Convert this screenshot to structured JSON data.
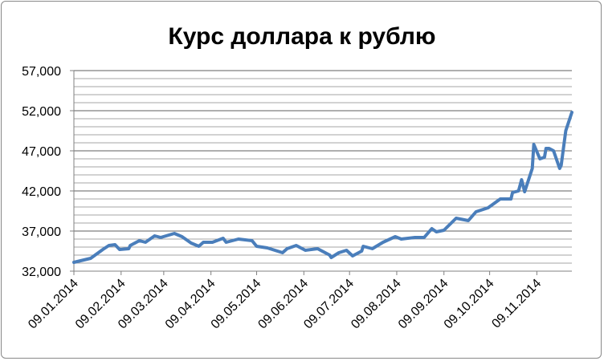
{
  "chart_data": {
    "type": "line",
    "title": "Курс доллара к рублю",
    "xlabel": "",
    "ylabel": "",
    "ylim": [
      32000,
      57000
    ],
    "yticks": [
      "32,000",
      "37,000",
      "42,000",
      "47,000",
      "52,000",
      "57,000"
    ],
    "ytick_values": [
      32000,
      37000,
      42000,
      47000,
      52000,
      57000
    ],
    "minor_grid_step": 1000,
    "xlim": [
      "09.01.2014",
      "02.12.2014"
    ],
    "xticks": [
      "09.01.2014",
      "09.02.2014",
      "09.03.2014",
      "09.04.2014",
      "09.05.2014",
      "09.06.2014",
      "09.07.2014",
      "09.08.2014",
      "09.09.2014",
      "09.10.2014",
      "09.11.2014"
    ],
    "grid": true,
    "legend": "none",
    "line_color": "#4a7ebb",
    "series": [
      {
        "x": [
          "09.01.2014",
          "20.01.2014",
          "28.01.2014",
          "01.02.2014",
          "05.02.2014",
          "08.02.2014",
          "14.02.2014",
          "15.02.2014",
          "21.02.2014",
          "25.02.2014",
          "03.03.2014",
          "07.03.2014",
          "16.03.2014",
          "21.03.2014",
          "27.03.2014",
          "01.04.2014",
          "04.04.2014",
          "10.04.2014",
          "17.04.2014",
          "19.04.2014",
          "27.04.2014",
          "06.05.2014",
          "09.05.2014",
          "16.05.2014",
          "26.05.2014",
          "29.05.2014",
          "04.06.2014",
          "10.06.2014",
          "18.06.2014",
          "21.06.2014",
          "26.06.2014",
          "27.06.2014",
          "02.07.2014",
          "07.07.2014",
          "11.07.2014",
          "17.07.2014",
          "18.07.2014",
          "24.07.2014",
          "31.07.2014",
          "08.08.2014",
          "12.08.2014",
          "21.08.2014",
          "27.08.2014",
          "01.09.2014",
          "04.09.2014",
          "09.09.2014",
          "17.09.2014",
          "25.09.2014",
          "30.09.2014",
          "08.10.2014",
          "16.10.2014",
          "23.10.2014",
          "24.10.2014",
          "28.10.2014",
          "30.10.2014",
          "01.11.2014",
          "06.11.2014",
          "07.11.2014",
          "11.11.2014",
          "14.11.2014",
          "15.11.2014",
          "17.11.2014",
          "20.11.2014",
          "24.11.2014",
          "25.11.2014",
          "28.11.2014",
          "02.12.2014"
        ],
        "y": [
          33100,
          33600,
          34700,
          35200,
          35300,
          34700,
          34800,
          35200,
          35800,
          35600,
          36400,
          36200,
          36700,
          36300,
          35500,
          35100,
          35600,
          35600,
          36100,
          35600,
          36000,
          35800,
          35100,
          34900,
          34300,
          34800,
          35200,
          34600,
          34800,
          34500,
          34000,
          33700,
          34300,
          34600,
          33900,
          34500,
          35100,
          34800,
          35600,
          36300,
          36000,
          36200,
          36200,
          37300,
          36900,
          37100,
          38600,
          38300,
          39400,
          39900,
          41000,
          41000,
          41800,
          42000,
          43400,
          41900,
          44800,
          47800,
          46000,
          46200,
          47300,
          47300,
          47000,
          44800,
          45200,
          49500,
          51800
        ]
      }
    ]
  }
}
